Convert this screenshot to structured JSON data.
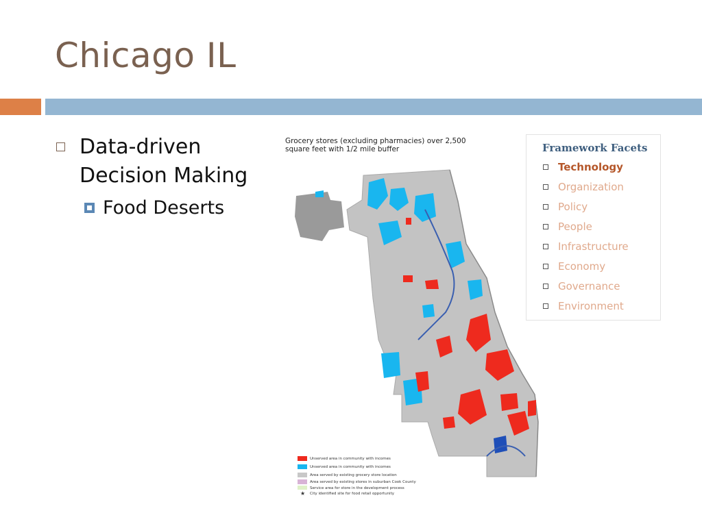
{
  "slide": {
    "title": "Chicago IL"
  },
  "bullets": {
    "level1": "Data-driven Decision Making",
    "level2": "Food Deserts"
  },
  "map": {
    "title": "Grocery stores (excluding pharmacies) over 2,500 square feet with 1/2 mile buffer",
    "legend": [
      {
        "label": "Unserved area in community with incomes below Chicago median income",
        "color": "#ee2a1e"
      },
      {
        "label": "Unserved area in community with incomes at or above the Chicago median income",
        "color": "#19b6ef"
      },
      {
        "label": "Area served by existing grocery store location or non-residential area",
        "color": "#c8c8c8"
      },
      {
        "label": "Area served by existing stores in suburban Cook County",
        "color": "#d8b4d6"
      },
      {
        "label": "Service area for store in the development process",
        "color": "#dff1c8"
      },
      {
        "label": "City identified site for food retail opportunity",
        "color": "#222222"
      }
    ]
  },
  "facets": {
    "heading": "Framework Facets",
    "items": [
      {
        "label": "Technology",
        "active": true
      },
      {
        "label": "Organization",
        "active": false
      },
      {
        "label": "Policy",
        "active": false
      },
      {
        "label": "People",
        "active": false
      },
      {
        "label": "Infrastructure",
        "active": false
      },
      {
        "label": "Economy",
        "active": false
      },
      {
        "label": "Governance",
        "active": false
      },
      {
        "label": "Environment",
        "active": false
      }
    ]
  },
  "colors": {
    "title": "#7a6150",
    "accent_orange": "#dd8047",
    "accent_blue": "#94b6d2",
    "unserved_low": "#ee2a1e",
    "unserved_high": "#19b6ef",
    "served": "#c8c8c8",
    "facet_active": "#b5572a",
    "facet_inactive": "#e0a98c"
  }
}
